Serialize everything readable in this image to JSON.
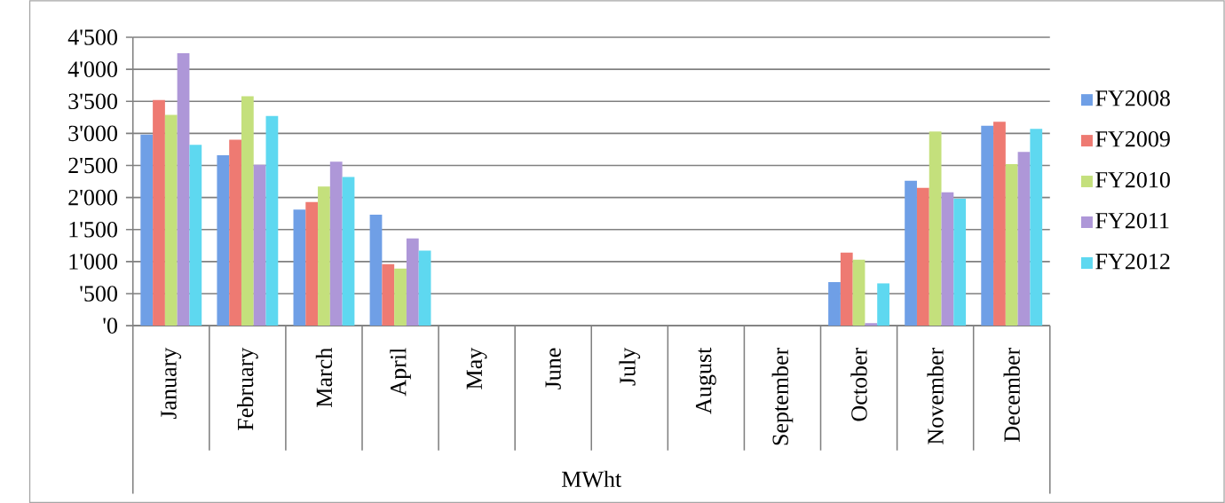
{
  "chart_data": {
    "type": "bar",
    "xlabel": "MWht",
    "categories": [
      "January",
      "February",
      "March",
      "April",
      "May",
      "June",
      "July",
      "August",
      "September",
      "October",
      "November",
      "December"
    ],
    "series": [
      {
        "name": "FY2008",
        "color": "#6f9fe6",
        "values": [
          2980,
          2660,
          1810,
          1730,
          0,
          0,
          0,
          0,
          0,
          680,
          2260,
          3120
        ]
      },
      {
        "name": "FY2009",
        "color": "#ee7a72",
        "values": [
          3520,
          2900,
          1930,
          960,
          0,
          0,
          0,
          0,
          0,
          1140,
          2150,
          3180
        ]
      },
      {
        "name": "FY2010",
        "color": "#c4e07c",
        "values": [
          3290,
          3580,
          2170,
          890,
          0,
          0,
          0,
          0,
          0,
          1030,
          3030,
          2520
        ]
      },
      {
        "name": "FY2011",
        "color": "#ae97d8",
        "values": [
          4250,
          2510,
          2560,
          1360,
          0,
          0,
          0,
          0,
          0,
          40,
          2080,
          2710
        ]
      },
      {
        "name": "FY2012",
        "color": "#5ed8f0",
        "values": [
          2820,
          3270,
          2320,
          1170,
          0,
          0,
          0,
          0,
          0,
          660,
          1980,
          3070
        ]
      }
    ],
    "ylim": [
      0,
      4500
    ],
    "yticks": [
      {
        "value": 0,
        "label": "'0"
      },
      {
        "value": 500,
        "label": "'500"
      },
      {
        "value": 1000,
        "label": "1'000"
      },
      {
        "value": 1500,
        "label": "1'500"
      },
      {
        "value": 2000,
        "label": "2'000"
      },
      {
        "value": 2500,
        "label": "2'500"
      },
      {
        "value": 3000,
        "label": "3'000"
      },
      {
        "value": 3500,
        "label": "3'500"
      },
      {
        "value": 4000,
        "label": "4'000"
      },
      {
        "value": 4500,
        "label": "4'500"
      }
    ],
    "grid": "y",
    "legend": "right"
  }
}
